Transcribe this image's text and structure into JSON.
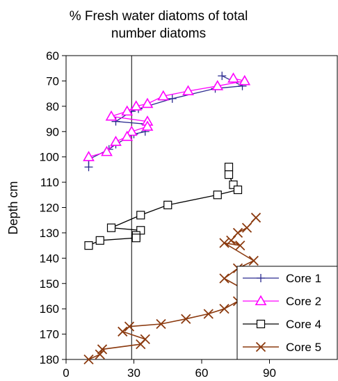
{
  "chart_data": {
    "type": "line",
    "title_lines": [
      "% Fresh water diatoms of total",
      "number diatoms"
    ],
    "xlabel": "",
    "ylabel": "Depth cm",
    "xlim": [
      0,
      120
    ],
    "ylim": [
      60,
      180
    ],
    "y_inverted": true,
    "x_ticks": [
      0,
      30,
      60,
      90
    ],
    "y_ticks": [
      60,
      70,
      80,
      90,
      100,
      110,
      120,
      130,
      140,
      150,
      160,
      170,
      180
    ],
    "reference_line_x": 29,
    "grid": false,
    "legend_position": "bottom-right",
    "series": [
      {
        "name": "Core 1",
        "color": "#2a2a8f",
        "marker": "plus",
        "points": [
          [
            69,
            68
          ],
          [
            78,
            72
          ],
          [
            66,
            73
          ],
          [
            47,
            77
          ],
          [
            32,
            81
          ],
          [
            29,
            82
          ],
          [
            22,
            86
          ],
          [
            35,
            87
          ],
          [
            35,
            90
          ],
          [
            30,
            91
          ],
          [
            22,
            95
          ],
          [
            19,
            97
          ],
          [
            10,
            101
          ],
          [
            10,
            104
          ]
        ]
      },
      {
        "name": "Core 2",
        "color": "#ff00ff",
        "marker": "triangle",
        "points": [
          [
            74,
            69
          ],
          [
            79,
            70
          ],
          [
            67,
            72
          ],
          [
            54,
            74
          ],
          [
            43,
            76
          ],
          [
            36,
            79
          ],
          [
            31,
            80
          ],
          [
            27,
            82
          ],
          [
            20,
            84
          ],
          [
            36,
            86
          ],
          [
            36,
            88
          ],
          [
            29,
            90
          ],
          [
            27,
            92
          ],
          [
            22,
            94
          ],
          [
            18,
            98
          ],
          [
            10,
            100
          ]
        ]
      },
      {
        "name": "Core 4",
        "color": "#000000",
        "marker": "square",
        "points": [
          [
            72,
            104
          ],
          [
            72,
            107
          ],
          [
            74,
            111
          ],
          [
            76,
            113
          ],
          [
            67,
            115
          ],
          [
            45,
            119
          ],
          [
            33,
            123
          ],
          [
            20,
            128
          ],
          [
            33,
            129
          ],
          [
            31,
            131
          ],
          [
            31,
            132
          ],
          [
            15,
            133
          ],
          [
            10,
            135
          ]
        ]
      },
      {
        "name": "Core 5",
        "color": "#8b3a0f",
        "marker": "x",
        "points": [
          [
            84,
            124
          ],
          [
            80,
            128
          ],
          [
            76,
            130
          ],
          [
            73,
            133
          ],
          [
            77,
            135
          ],
          [
            70,
            134
          ],
          [
            83,
            141
          ],
          [
            76,
            144
          ],
          [
            70,
            148
          ],
          [
            82,
            154
          ],
          [
            76,
            157
          ],
          [
            70,
            160
          ],
          [
            63,
            162
          ],
          [
            53,
            164
          ],
          [
            42,
            166
          ],
          [
            28,
            167
          ],
          [
            25,
            169
          ],
          [
            35,
            172
          ],
          [
            33,
            174
          ],
          [
            16,
            176
          ],
          [
            15,
            178
          ],
          [
            10,
            180
          ]
        ]
      }
    ]
  }
}
